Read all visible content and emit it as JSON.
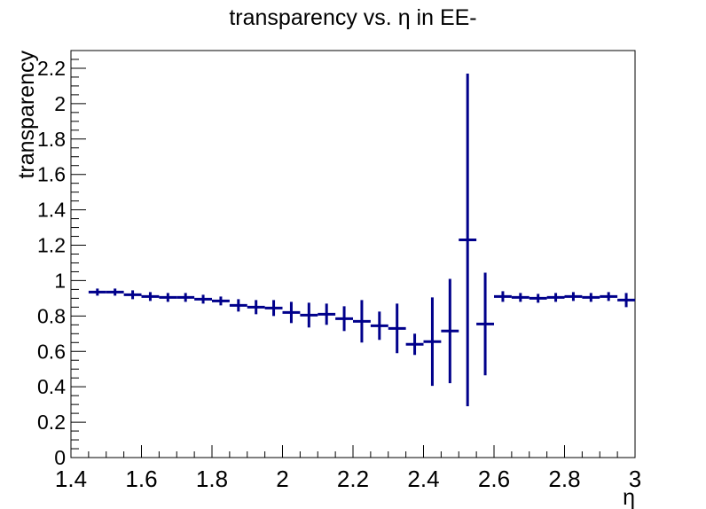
{
  "chart_data": {
    "type": "scatter",
    "title": "transparency vs. η in EE-",
    "xlabel": "η",
    "ylabel": "transparency",
    "xlim": [
      1.4,
      3.0
    ],
    "ylim": [
      0,
      2.3
    ],
    "x_ticks": [
      "1.4",
      "1.6",
      "1.8",
      "2",
      "2.2",
      "2.4",
      "2.6",
      "2.8",
      "3"
    ],
    "y_ticks": [
      "0",
      "0.2",
      "0.4",
      "0.6",
      "0.8",
      "1",
      "1.2",
      "1.4",
      "1.6",
      "1.8",
      "2",
      "2.2"
    ],
    "bin_width": 0.05,
    "grid": false,
    "color": "#00008b",
    "series": [
      {
        "x": [
          1.475,
          1.525,
          1.575,
          1.625,
          1.675,
          1.725,
          1.775,
          1.825,
          1.875,
          1.925,
          1.975,
          2.025,
          2.075,
          2.125,
          2.175,
          2.225,
          2.275,
          2.325,
          2.375,
          2.425,
          2.475,
          2.525,
          2.575,
          2.625,
          2.675,
          2.725,
          2.775,
          2.825,
          2.875,
          2.925,
          2.975
        ],
        "y": [
          0.935,
          0.935,
          0.92,
          0.91,
          0.905,
          0.905,
          0.895,
          0.885,
          0.86,
          0.85,
          0.845,
          0.82,
          0.805,
          0.81,
          0.785,
          0.77,
          0.745,
          0.73,
          0.64,
          0.655,
          0.715,
          1.23,
          0.755,
          0.91,
          0.905,
          0.9,
          0.905,
          0.91,
          0.905,
          0.91,
          0.89
        ],
        "yerr": [
          0.02,
          0.02,
          0.025,
          0.025,
          0.025,
          0.025,
          0.025,
          0.025,
          0.035,
          0.04,
          0.045,
          0.06,
          0.07,
          0.06,
          0.07,
          0.12,
          0.08,
          0.14,
          0.06,
          0.25,
          0.295,
          0.94,
          0.29,
          0.03,
          0.025,
          0.025,
          0.025,
          0.025,
          0.025,
          0.025,
          0.04
        ]
      }
    ]
  }
}
